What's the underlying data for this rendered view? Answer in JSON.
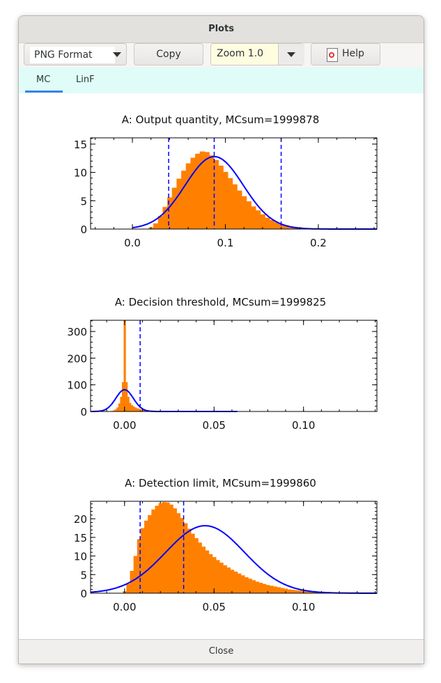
{
  "window": {
    "title": "Plots",
    "close_label": "Close"
  },
  "toolbar": {
    "format": "PNG Format",
    "copy": "Copy",
    "zoom": "Zoom 1.0",
    "help": "Help"
  },
  "tabs": [
    {
      "label": "MC",
      "active": true
    },
    {
      "label": "LinF",
      "active": false
    }
  ],
  "colors": {
    "histogram": "#ff8000",
    "curve": "#0000ff",
    "dashed": "#0000ff"
  },
  "chart_data": [
    {
      "type": "area",
      "title": "A:  Output quantity,  MCsum=1999878",
      "xlim": [
        -0.045,
        0.263
      ],
      "ylim": [
        0,
        16.1
      ],
      "x_ticks": [
        0.0,
        0.1,
        0.2
      ],
      "x_tick_labels": [
        "0.0",
        "0.1",
        "0.2"
      ],
      "x_minor_step": 0.02,
      "y_ticks": [
        0,
        5,
        10,
        15
      ],
      "y_tick_labels": [
        "0",
        "5",
        "10",
        "15"
      ],
      "y_minor_step": 1,
      "histogram": {
        "start": 0.015,
        "step": 0.005,
        "values": [
          0,
          0.3,
          1.0,
          2.3,
          3.9,
          5.6,
          7.3,
          8.9,
          10.3,
          11.6,
          12.6,
          13.3,
          13.7,
          13.6,
          13.0,
          12.2,
          11.2,
          10.1,
          9.0,
          7.9,
          6.8,
          5.8,
          4.9,
          4.0,
          3.3,
          2.6,
          2.0,
          1.6,
          1.2,
          0.9,
          0.7,
          0.5,
          0.4,
          0.3,
          0.2,
          0.15,
          0.1,
          0.08,
          0.06,
          0.04,
          0.03,
          0.02,
          0.01
        ]
      },
      "normal_curve": {
        "mean": 0.088,
        "sd": 0.0312,
        "x_range": [
          0.0,
          0.263
        ]
      },
      "dashed_lines": [
        0.039,
        0.088,
        0.16
      ]
    },
    {
      "type": "area",
      "title": "A:  Decision threshold,  MCsum=1999825",
      "xlim": [
        -0.019,
        0.141
      ],
      "ylim": [
        0,
        342
      ],
      "x_ticks": [
        0.0,
        0.05,
        0.1
      ],
      "x_tick_labels": [
        "0.00",
        "0.05",
        "0.10"
      ],
      "x_minor_step": 0.01,
      "y_ticks": [
        0,
        100,
        200,
        300
      ],
      "y_tick_labels": [
        "0",
        "100",
        "200",
        "300"
      ],
      "y_minor_step": 20,
      "histogram": {
        "start": -0.01,
        "step": 0.001,
        "values": [
          0,
          0.5,
          1,
          2,
          4,
          8,
          15,
          30,
          55,
          110,
          342,
          110,
          55,
          32,
          24,
          19,
          15,
          12,
          10,
          8,
          7,
          6,
          5,
          4,
          3.5,
          3,
          2.5,
          2,
          1.6,
          1.3,
          1,
          0.8,
          0.6,
          0.5,
          0.4,
          0.3,
          0.2,
          0.2,
          0.1,
          0.1,
          0.1
        ]
      },
      "normal_curve": {
        "mean": 0.0,
        "sd": 0.0049,
        "x_range": [
          -0.019,
          0.063
        ]
      },
      "dashed_lines": [
        0.0087
      ]
    },
    {
      "type": "area",
      "title": "A:  Detection limit,  MCsum=1999860",
      "xlim": [
        -0.019,
        0.141
      ],
      "ylim": [
        0,
        24.7
      ],
      "x_ticks": [
        0.0,
        0.05,
        0.1
      ],
      "x_tick_labels": [
        "0.00",
        "0.05",
        "0.10"
      ],
      "x_minor_step": 0.01,
      "y_ticks": [
        0,
        5,
        10,
        15,
        20
      ],
      "y_tick_labels": [
        "0",
        "5",
        "10",
        "15",
        "20"
      ],
      "y_minor_step": 1,
      "histogram": {
        "start": -0.002,
        "step": 0.002,
        "values": [
          0,
          0.5,
          2.5,
          6,
          10,
          14.5,
          17.5,
          19.5,
          21,
          22.5,
          23.5,
          24.2,
          24.5,
          24.4,
          23.8,
          22.8,
          21.5,
          20.2,
          18.8,
          17.3,
          16,
          14.8,
          13.6,
          12.5,
          11.5,
          10.5,
          9.7,
          8.9,
          8.2,
          7.5,
          6.9,
          6.3,
          5.8,
          5.3,
          4.8,
          4.3,
          3.9,
          3.5,
          3.1,
          2.8,
          2.5,
          2.2,
          2.0,
          1.8,
          1.6,
          1.4,
          1.2,
          1.0,
          0.9,
          0.8,
          0.7,
          0.6,
          0.5,
          0.4,
          0.3,
          0.25,
          0.2,
          0.15,
          0.1,
          0.05
        ]
      },
      "normal_curve": {
        "mean": 0.045,
        "sd": 0.022,
        "x_range": [
          -0.019,
          0.141
        ]
      },
      "dashed_lines": [
        0.0087,
        0.033
      ]
    }
  ]
}
